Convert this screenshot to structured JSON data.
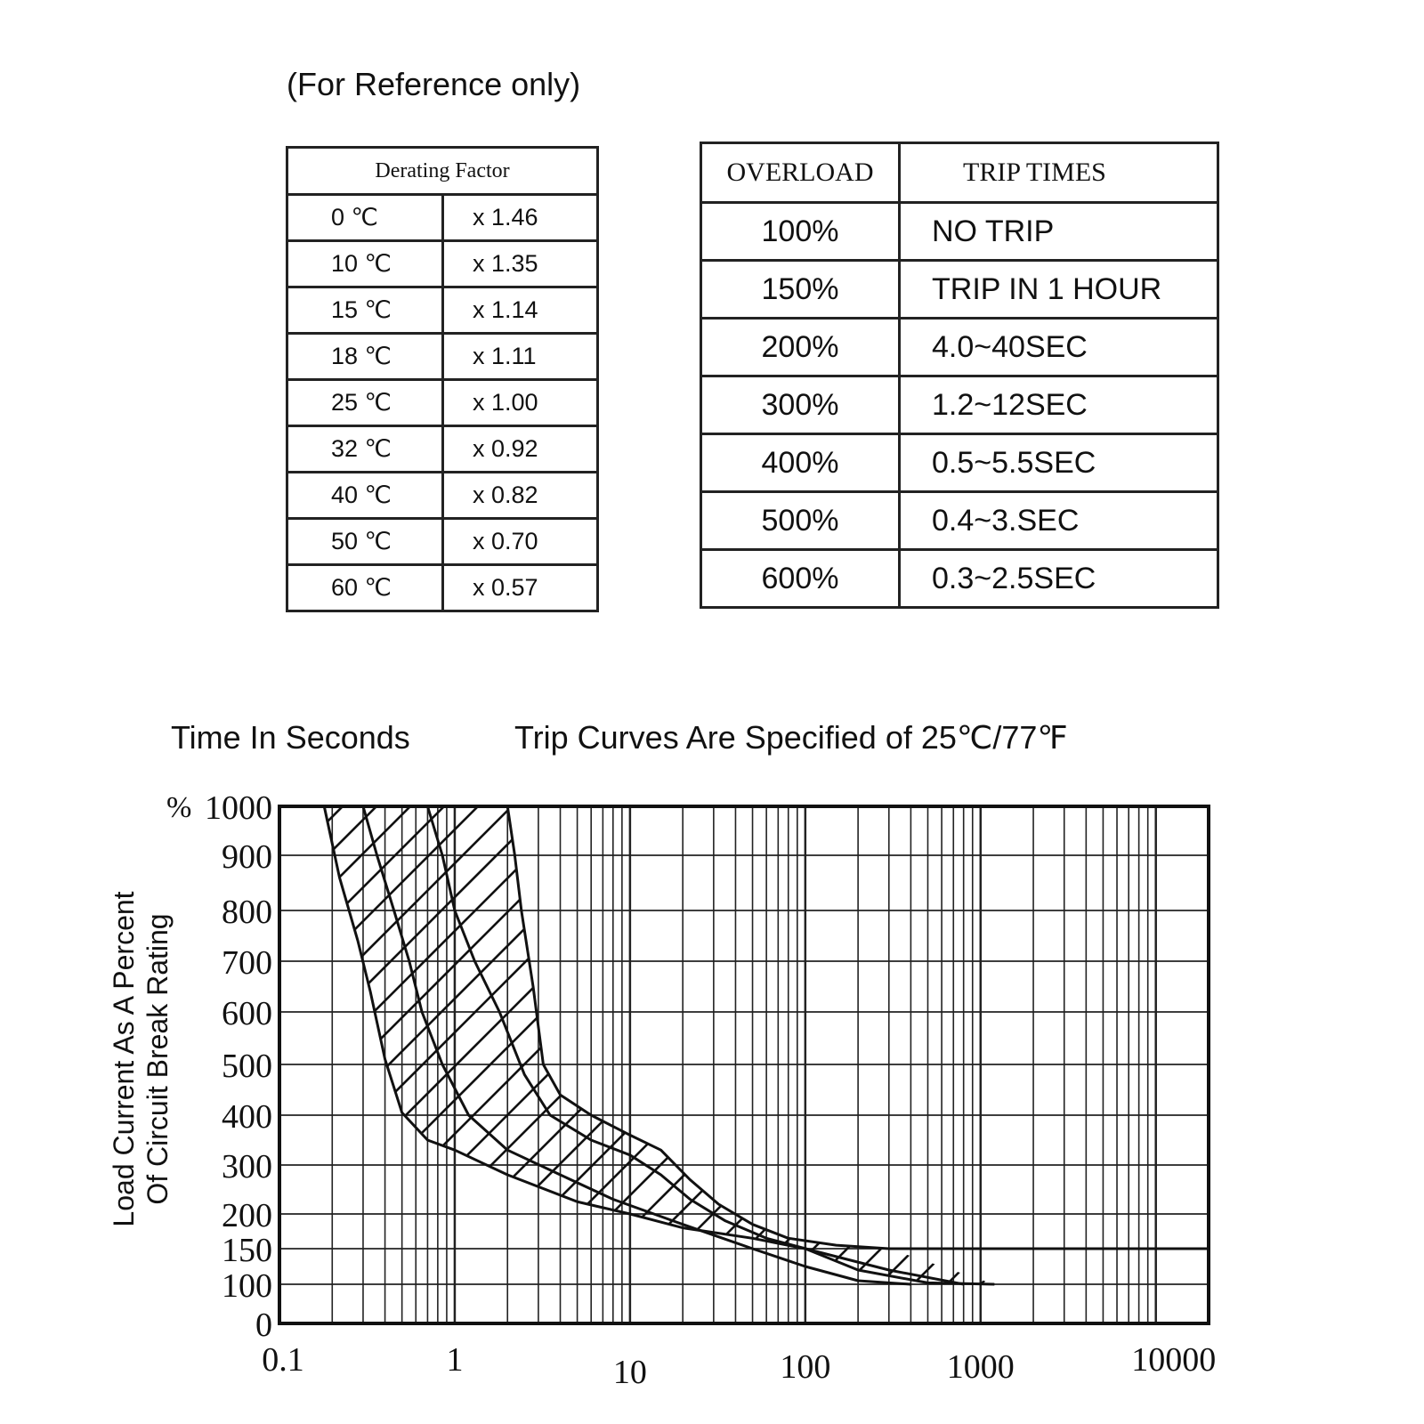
{
  "reference_note": "(For Reference only)",
  "derating_table": {
    "header": "Derating Factor",
    "rows": [
      {
        "temp": "0 ℃",
        "factor": "x 1.46"
      },
      {
        "temp": "10 ℃",
        "factor": "x 1.35"
      },
      {
        "temp": "15 ℃",
        "factor": "x 1.14"
      },
      {
        "temp": "18 ℃",
        "factor": "x 1.11"
      },
      {
        "temp": "25 ℃",
        "factor": "x 1.00"
      },
      {
        "temp": "32 ℃",
        "factor": "x 0.92"
      },
      {
        "temp": "40 ℃",
        "factor": "x 0.82"
      },
      {
        "temp": "50 ℃",
        "factor": "x 0.70"
      },
      {
        "temp": "60 ℃",
        "factor": "x 0.57"
      }
    ]
  },
  "overload_table": {
    "headers": [
      "OVERLOAD",
      "TRIP TIMES"
    ],
    "rows": [
      {
        "overload": "100%",
        "trip": "NO TRIP"
      },
      {
        "overload": "150%",
        "trip": "TRIP IN 1 HOUR"
      },
      {
        "overload": "200%",
        "trip": "4.0~40SEC"
      },
      {
        "overload": "300%",
        "trip": "1.2~12SEC"
      },
      {
        "overload": "400%",
        "trip": "0.5~5.5SEC"
      },
      {
        "overload": "500%",
        "trip": "0.4~3.SEC"
      },
      {
        "overload": "600%",
        "trip": "0.3~2.5SEC"
      }
    ]
  },
  "chart_data": {
    "type": "line",
    "title": "Trip Curves Are Specified of 25℃/77℉",
    "xlabel": "Time In Seconds",
    "ylabel_lines": [
      "Load Current As A Percent",
      "Of Circuit Break Rating"
    ],
    "y_unit_label": "%",
    "x_scale": "log",
    "xlim": [
      0.1,
      20000
    ],
    "x_ticks": [
      0.1,
      1,
      10,
      100,
      1000,
      10000
    ],
    "x_tick_labels": [
      "0.1",
      "1",
      "10",
      "100",
      "1000",
      "10000"
    ],
    "y_ticks": [
      0,
      100,
      150,
      200,
      300,
      400,
      500,
      600,
      700,
      800,
      900,
      1000
    ],
    "y_tick_labels": [
      "0",
      "100",
      "150",
      "200",
      "300",
      "400",
      "500",
      "600",
      "700",
      "800",
      "900",
      "1000"
    ],
    "grid": true,
    "series": [
      {
        "role": "min-trip-time",
        "points": [
          [
            0.18,
            1000
          ],
          [
            0.22,
            860
          ],
          [
            0.28,
            740
          ],
          [
            0.33,
            640
          ],
          [
            0.4,
            510
          ],
          [
            0.5,
            405
          ],
          [
            0.7,
            350
          ],
          [
            1.0,
            330
          ],
          [
            2,
            280
          ],
          [
            5,
            225
          ],
          [
            10,
            200
          ],
          [
            20,
            180
          ],
          [
            50,
            165
          ],
          [
            100,
            150
          ],
          [
            200,
            120
          ],
          [
            500,
            102
          ],
          [
            1200,
            100
          ]
        ]
      },
      {
        "role": "max-trip-time",
        "points": [
          [
            2.0,
            1000
          ],
          [
            2.2,
            900
          ],
          [
            2.4,
            800
          ],
          [
            2.8,
            650
          ],
          [
            3.2,
            500
          ],
          [
            4,
            440
          ],
          [
            6,
            400
          ],
          [
            10,
            360
          ],
          [
            15,
            330
          ],
          [
            22,
            270
          ],
          [
            32,
            220
          ],
          [
            50,
            185
          ],
          [
            80,
            165
          ],
          [
            150,
            155
          ],
          [
            300,
            150
          ],
          [
            20000,
            150
          ]
        ]
      },
      {
        "role": "typical-inner",
        "points": [
          [
            0.7,
            1000
          ],
          [
            0.85,
            900
          ],
          [
            1.0,
            800
          ],
          [
            1.3,
            700
          ],
          [
            1.8,
            600
          ],
          [
            2.5,
            480
          ],
          [
            3.5,
            400
          ],
          [
            6,
            350
          ],
          [
            10,
            320
          ],
          [
            15,
            280
          ],
          [
            22,
            230
          ],
          [
            35,
            190
          ],
          [
            60,
            165
          ],
          [
            120,
            145
          ],
          [
            300,
            120
          ],
          [
            800,
            100
          ]
        ]
      },
      {
        "role": "typical-outer",
        "points": [
          [
            0.3,
            1000
          ],
          [
            0.36,
            900
          ],
          [
            0.45,
            800
          ],
          [
            0.55,
            700
          ],
          [
            0.65,
            600
          ],
          [
            0.85,
            500
          ],
          [
            1.2,
            400
          ],
          [
            2,
            330
          ],
          [
            4,
            280
          ],
          [
            8,
            230
          ],
          [
            20,
            185
          ],
          [
            50,
            150
          ],
          [
            100,
            125
          ],
          [
            200,
            105
          ],
          [
            400,
            100
          ]
        ]
      }
    ]
  }
}
